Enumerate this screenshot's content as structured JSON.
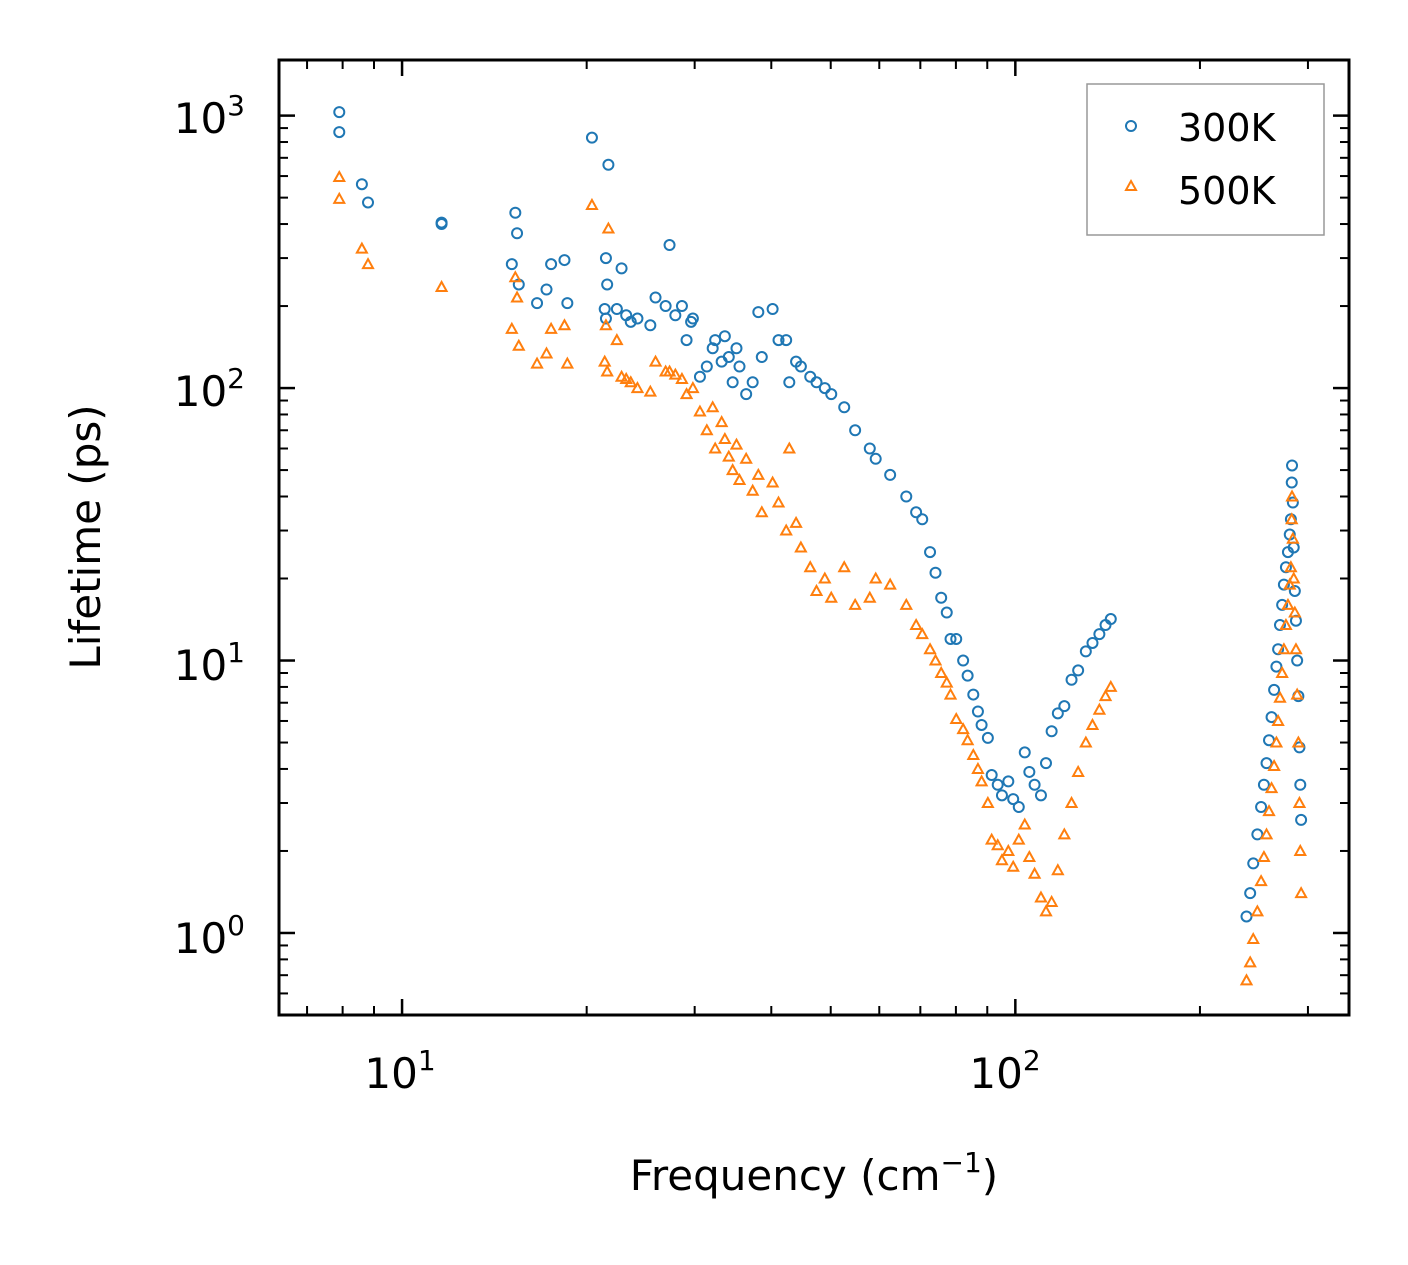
{
  "chart_data": {
    "type": "scatter",
    "xscale": "log",
    "yscale": "log",
    "xlim": [
      6.3,
      350
    ],
    "ylim": [
      0.5,
      1600
    ],
    "xlabel": "Frequency (cm",
    "xlabel_sup": "−1",
    "xlabel_end": ")",
    "ylabel": "Lifetime (ps)",
    "x_ticks": [
      {
        "value": 10,
        "base": "10",
        "exp": "1"
      },
      {
        "value": 100,
        "base": "10",
        "exp": "2"
      }
    ],
    "y_ticks": [
      {
        "value": 1,
        "base": "10",
        "exp": "0"
      },
      {
        "value": 10,
        "base": "10",
        "exp": "1"
      },
      {
        "value": 100,
        "base": "10",
        "exp": "2"
      },
      {
        "value": 1000,
        "base": "10",
        "exp": "3"
      }
    ],
    "legend_position": "top-right",
    "series": [
      {
        "name": "300K",
        "marker": "circle",
        "color": "#1f77b4",
        "points": [
          [
            7.9,
            1030
          ],
          [
            7.9,
            870
          ],
          [
            8.6,
            560
          ],
          [
            8.8,
            480
          ],
          [
            11.6,
            405
          ],
          [
            11.6,
            400
          ],
          [
            15.3,
            440
          ],
          [
            15.4,
            370
          ],
          [
            15.1,
            285
          ],
          [
            15.5,
            240
          ],
          [
            16.6,
            205
          ],
          [
            17.2,
            230
          ],
          [
            17.5,
            285
          ],
          [
            18.4,
            295
          ],
          [
            18.6,
            205
          ],
          [
            20.4,
            830
          ],
          [
            21.7,
            660
          ],
          [
            21.5,
            300
          ],
          [
            21.6,
            240
          ],
          [
            21.4,
            195
          ],
          [
            21.5,
            180
          ],
          [
            22.4,
            195
          ],
          [
            22.8,
            275
          ],
          [
            23.2,
            185
          ],
          [
            23.6,
            175
          ],
          [
            24.2,
            180
          ],
          [
            25.4,
            170
          ],
          [
            25.9,
            215
          ],
          [
            26.9,
            200
          ],
          [
            27.3,
            335
          ],
          [
            27.9,
            185
          ],
          [
            28.6,
            200
          ],
          [
            29.1,
            150
          ],
          [
            29.6,
            175
          ],
          [
            29.8,
            180
          ],
          [
            30.6,
            110
          ],
          [
            31.4,
            120
          ],
          [
            32.1,
            140
          ],
          [
            32.4,
            150
          ],
          [
            33.2,
            125
          ],
          [
            33.6,
            155
          ],
          [
            34.1,
            130
          ],
          [
            34.6,
            105
          ],
          [
            35.1,
            140
          ],
          [
            35.5,
            120
          ],
          [
            36.4,
            95
          ],
          [
            37.3,
            105
          ],
          [
            38.1,
            190
          ],
          [
            38.6,
            130
          ],
          [
            40.2,
            195
          ],
          [
            41.1,
            150
          ],
          [
            42.3,
            150
          ],
          [
            42.8,
            105
          ],
          [
            43.9,
            125
          ],
          [
            44.7,
            120
          ],
          [
            46.3,
            110
          ],
          [
            47.4,
            105
          ],
          [
            48.9,
            100
          ],
          [
            50.1,
            95
          ],
          [
            52.6,
            85
          ],
          [
            54.8,
            70
          ],
          [
            57.9,
            60
          ],
          [
            59.2,
            55
          ],
          [
            62.5,
            48
          ],
          [
            66.4,
            40
          ],
          [
            68.9,
            35
          ],
          [
            70.5,
            33
          ],
          [
            72.6,
            25
          ],
          [
            74.1,
            21
          ],
          [
            75.7,
            17
          ],
          [
            77.3,
            15
          ],
          [
            78.4,
            12
          ],
          [
            80.1,
            12
          ],
          [
            82.2,
            10
          ],
          [
            83.6,
            8.8
          ],
          [
            85.4,
            7.5
          ],
          [
            86.9,
            6.5
          ],
          [
            88.1,
            5.8
          ],
          [
            90.2,
            5.2
          ],
          [
            91.5,
            3.8
          ],
          [
            93.6,
            3.5
          ],
          [
            95.1,
            3.2
          ],
          [
            97.4,
            3.6
          ],
          [
            99.2,
            3.1
          ],
          [
            101.3,
            2.9
          ],
          [
            103.6,
            4.6
          ],
          [
            105.4,
            3.9
          ],
          [
            107.5,
            3.5
          ],
          [
            110.1,
            3.2
          ],
          [
            112.2,
            4.2
          ],
          [
            114.6,
            5.5
          ],
          [
            117.3,
            6.4
          ],
          [
            120.2,
            6.8
          ],
          [
            123.5,
            8.5
          ],
          [
            126.6,
            9.2
          ],
          [
            130.3,
            10.8
          ],
          [
            133.6,
            11.6
          ],
          [
            137.1,
            12.5
          ],
          [
            140.3,
            13.5
          ],
          [
            143.1,
            14.2
          ],
          [
            238.2,
            1.15
          ],
          [
            241.5,
            1.4
          ],
          [
            244.3,
            1.8
          ],
          [
            248.1,
            2.3
          ],
          [
            251.6,
            2.9
          ],
          [
            254.3,
            3.5
          ],
          [
            256.8,
            4.2
          ],
          [
            259.2,
            5.1
          ],
          [
            261.7,
            6.2
          ],
          [
            264.2,
            7.8
          ],
          [
            266.5,
            9.5
          ],
          [
            268.2,
            11
          ],
          [
            270.1,
            13.5
          ],
          [
            272.3,
            16
          ],
          [
            274.1,
            19
          ],
          [
            276.2,
            22
          ],
          [
            278.3,
            25
          ],
          [
            280.2,
            29
          ],
          [
            281.4,
            33
          ],
          [
            282.3,
            45
          ],
          [
            282.6,
            52
          ],
          [
            283.5,
            38
          ],
          [
            284.4,
            26
          ],
          [
            285.6,
            18
          ],
          [
            286.8,
            14
          ],
          [
            288.1,
            10
          ],
          [
            289.4,
            7.4
          ],
          [
            290.6,
            4.8
          ],
          [
            291.5,
            3.5
          ],
          [
            292.4,
            2.6
          ]
        ]
      },
      {
        "name": "500K",
        "marker": "triangle",
        "color": "#ff7f0e",
        "points": [
          [
            7.9,
            595
          ],
          [
            7.9,
            495
          ],
          [
            8.6,
            325
          ],
          [
            8.8,
            285
          ],
          [
            11.6,
            235
          ],
          [
            15.3,
            255
          ],
          [
            15.4,
            215
          ],
          [
            15.1,
            165
          ],
          [
            15.5,
            143
          ],
          [
            16.6,
            123
          ],
          [
            17.2,
            134
          ],
          [
            17.5,
            165
          ],
          [
            18.4,
            170
          ],
          [
            18.6,
            123
          ],
          [
            20.4,
            470
          ],
          [
            21.7,
            385
          ],
          [
            21.5,
            170
          ],
          [
            21.4,
            125
          ],
          [
            21.6,
            115
          ],
          [
            22.4,
            150
          ],
          [
            22.8,
            110
          ],
          [
            23.2,
            108
          ],
          [
            23.6,
            105
          ],
          [
            24.2,
            100
          ],
          [
            25.4,
            97
          ],
          [
            25.9,
            125
          ],
          [
            26.9,
            115
          ],
          [
            27.3,
            115
          ],
          [
            27.9,
            112
          ],
          [
            28.6,
            108
          ],
          [
            29.1,
            95
          ],
          [
            29.8,
            100
          ],
          [
            30.6,
            82
          ],
          [
            31.4,
            70
          ],
          [
            32.1,
            85
          ],
          [
            32.4,
            60
          ],
          [
            33.2,
            75
          ],
          [
            33.6,
            65
          ],
          [
            34.1,
            56
          ],
          [
            34.6,
            50
          ],
          [
            35.1,
            62
          ],
          [
            35.5,
            46
          ],
          [
            36.4,
            55
          ],
          [
            37.3,
            42
          ],
          [
            38.1,
            48
          ],
          [
            38.6,
            35
          ],
          [
            40.2,
            45
          ],
          [
            41.1,
            38
          ],
          [
            42.3,
            30
          ],
          [
            42.8,
            60
          ],
          [
            43.9,
            32
          ],
          [
            44.7,
            26
          ],
          [
            46.3,
            22
          ],
          [
            47.4,
            18
          ],
          [
            48.9,
            20
          ],
          [
            50.1,
            17
          ],
          [
            52.6,
            22
          ],
          [
            54.8,
            16
          ],
          [
            57.9,
            17
          ],
          [
            59.2,
            20
          ],
          [
            62.5,
            19
          ],
          [
            66.4,
            16
          ],
          [
            68.9,
            13.5
          ],
          [
            70.5,
            12.5
          ],
          [
            72.6,
            11
          ],
          [
            74.1,
            10
          ],
          [
            75.7,
            9
          ],
          [
            77.3,
            8.3
          ],
          [
            78.4,
            7.5
          ],
          [
            80.1,
            6.1
          ],
          [
            82.2,
            5.6
          ],
          [
            83.6,
            5.1
          ],
          [
            85.4,
            4.5
          ],
          [
            86.9,
            4.0
          ],
          [
            88.1,
            3.6
          ],
          [
            90.2,
            3.0
          ],
          [
            91.5,
            2.2
          ],
          [
            93.6,
            2.1
          ],
          [
            95.1,
            1.85
          ],
          [
            97.4,
            2.0
          ],
          [
            99.2,
            1.75
          ],
          [
            101.3,
            2.2
          ],
          [
            103.6,
            2.5
          ],
          [
            105.4,
            1.9
          ],
          [
            107.5,
            1.65
          ],
          [
            110.1,
            1.35
          ],
          [
            112.2,
            1.2
          ],
          [
            114.6,
            1.3
          ],
          [
            117.3,
            1.7
          ],
          [
            120.2,
            2.3
          ],
          [
            123.5,
            3.0
          ],
          [
            126.6,
            3.9
          ],
          [
            130.3,
            5.0
          ],
          [
            133.6,
            5.8
          ],
          [
            137.1,
            6.6
          ],
          [
            140.3,
            7.4
          ],
          [
            143.1,
            8.0
          ],
          [
            238.2,
            0.67
          ],
          [
            241.5,
            0.78
          ],
          [
            244.3,
            0.95
          ],
          [
            248.1,
            1.2
          ],
          [
            251.6,
            1.55
          ],
          [
            254.3,
            1.9
          ],
          [
            256.8,
            2.3
          ],
          [
            259.2,
            2.8
          ],
          [
            261.7,
            3.4
          ],
          [
            264.2,
            4.1
          ],
          [
            266.5,
            5.0
          ],
          [
            268.2,
            6.0
          ],
          [
            270.1,
            7.3
          ],
          [
            272.3,
            9.0
          ],
          [
            274.1,
            11
          ],
          [
            276.2,
            13.5
          ],
          [
            278.3,
            16
          ],
          [
            280.2,
            19
          ],
          [
            281.4,
            22
          ],
          [
            282.3,
            33
          ],
          [
            282.6,
            40
          ],
          [
            283.5,
            28
          ],
          [
            284.4,
            20
          ],
          [
            285.6,
            15
          ],
          [
            286.8,
            11
          ],
          [
            288.1,
            7.5
          ],
          [
            289.4,
            5.0
          ],
          [
            290.6,
            3.0
          ],
          [
            291.5,
            2.0
          ],
          [
            292.4,
            1.4
          ]
        ]
      }
    ]
  }
}
